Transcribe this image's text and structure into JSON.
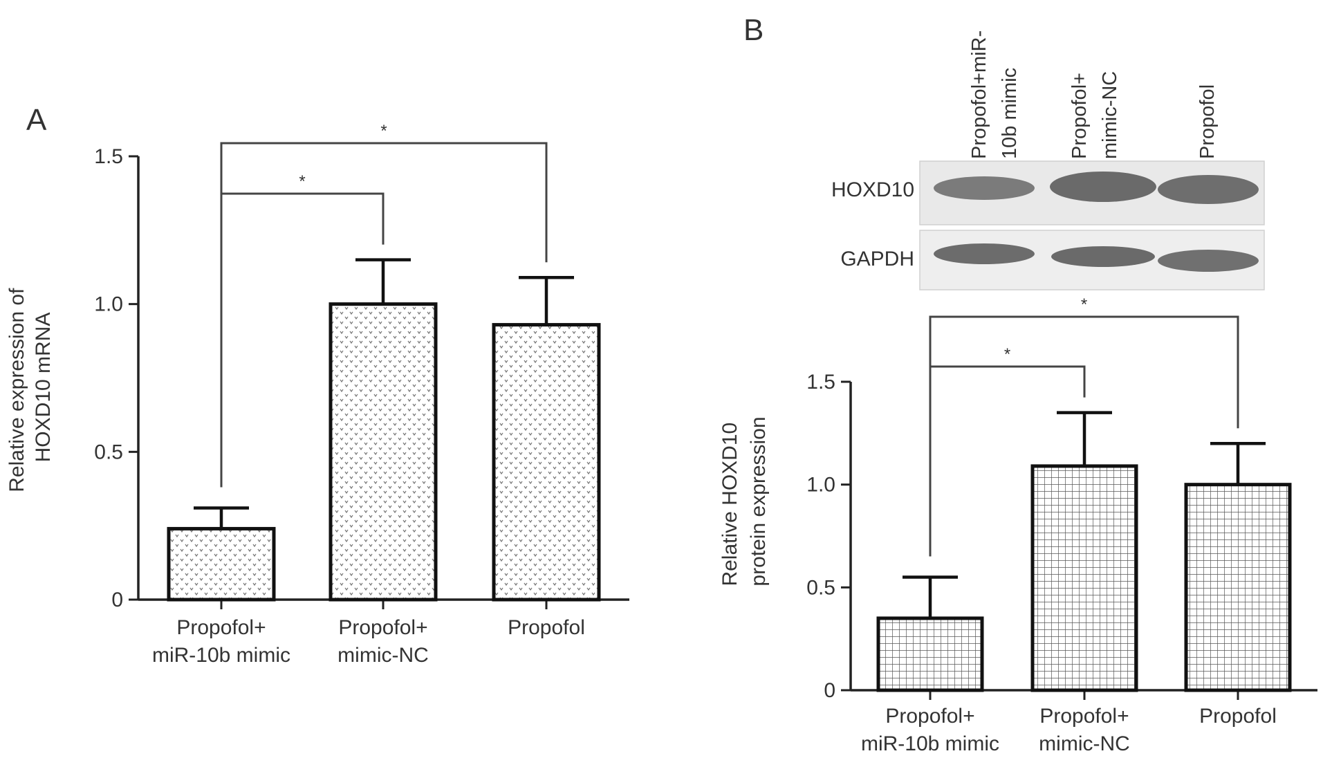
{
  "panel_a": {
    "letter": "A",
    "ylabel_lines": [
      "Relative expression of",
      "HOXD10 mRNA"
    ]
  },
  "panel_b": {
    "letter": "B",
    "ylabel_lines": [
      "Relative HOXD10",
      "protein expression"
    ],
    "blot": {
      "lane_labels": [
        [
          "Propofol+miR-",
          "10b mimic"
        ],
        [
          "Propofol+",
          "mimic-NC"
        ],
        [
          "Propofol"
        ]
      ],
      "rows": [
        "HOXD10",
        "GAPDH"
      ]
    }
  },
  "chart_data": [
    {
      "type": "bar",
      "panel": "A",
      "categories": [
        [
          "Propofol+",
          "miR-10b mimic"
        ],
        [
          "Propofol+",
          "mimic-NC"
        ],
        [
          "Propofol"
        ]
      ],
      "values": [
        0.24,
        1.0,
        0.93
      ],
      "error": [
        0.07,
        0.15,
        0.16
      ],
      "ylim": [
        0,
        1.5
      ],
      "yticks": [
        0,
        0.5,
        1.0,
        1.5
      ],
      "ytick_labels": [
        "0",
        "0.5",
        "1.0",
        "1.5"
      ],
      "significance": [
        {
          "from": 0,
          "to": 1,
          "label": "*"
        },
        {
          "from": 0,
          "to": 2,
          "label": "*"
        }
      ],
      "fill_pattern": "dots",
      "grid": false
    },
    {
      "type": "bar",
      "panel": "B",
      "categories": [
        [
          "Propofol+",
          "miR-10b mimic"
        ],
        [
          "Propofol+",
          "mimic-NC"
        ],
        [
          "Propofol"
        ]
      ],
      "values": [
        0.35,
        1.09,
        1.0
      ],
      "error": [
        0.2,
        0.26,
        0.2
      ],
      "ylim": [
        0,
        1.5
      ],
      "yticks": [
        0,
        0.5,
        1.0,
        1.5
      ],
      "ytick_labels": [
        "0",
        "0.5",
        "1.0",
        "1.5"
      ],
      "significance": [
        {
          "from": 0,
          "to": 1,
          "label": "*"
        },
        {
          "from": 0,
          "to": 2,
          "label": "*"
        }
      ],
      "fill_pattern": "grid",
      "grid": false
    }
  ]
}
